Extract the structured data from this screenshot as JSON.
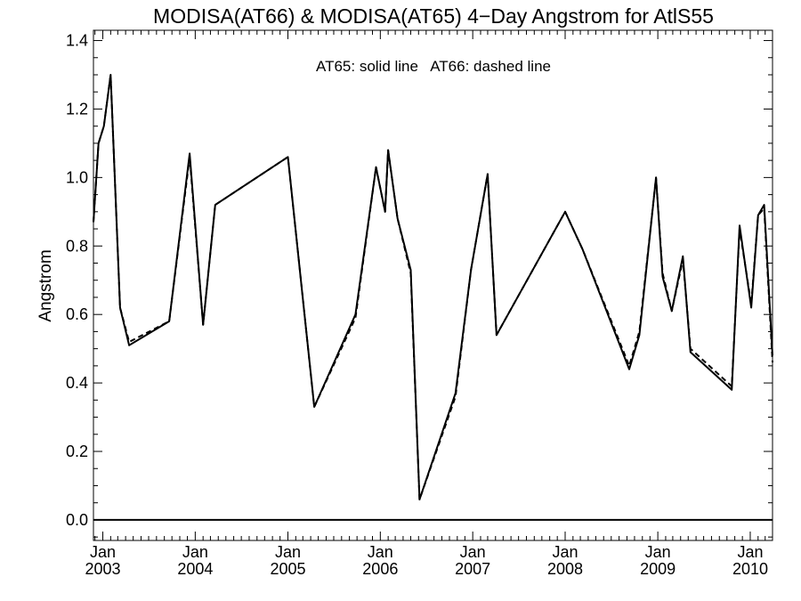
{
  "chart_data": {
    "type": "line",
    "title": "MODISA(AT66) & MODISA(AT65) 4−Day Angstrom for AtlS55",
    "ylabel": "Angstrom",
    "xlabel": "",
    "annotation": "AT65: solid line   AT66: dashed line",
    "xlim": [
      "2002-11-25",
      "2010-03-30"
    ],
    "ylim": [
      -0.06,
      1.43
    ],
    "y_ticks": [
      "0.0",
      "0.2",
      "0.4",
      "0.6",
      "0.8",
      "1.0",
      "1.2",
      "1.4"
    ],
    "x_ticks": [
      {
        "month": "Jan",
        "year": "2003",
        "date": "2003-01-01"
      },
      {
        "month": "Jan",
        "year": "2004",
        "date": "2004-01-01"
      },
      {
        "month": "Jan",
        "year": "2005",
        "date": "2005-01-01"
      },
      {
        "month": "Jan",
        "year": "2006",
        "date": "2006-01-01"
      },
      {
        "month": "Jan",
        "year": "2007",
        "date": "2007-01-01"
      },
      {
        "month": "Jan",
        "year": "2008",
        "date": "2008-01-01"
      },
      {
        "month": "Jan",
        "year": "2009",
        "date": "2009-01-01"
      },
      {
        "month": "Jan",
        "year": "2010",
        "date": "2010-01-01"
      }
    ],
    "zero_line": 0.0,
    "series": [
      {
        "name": "AT65",
        "style": "solid",
        "color": "#000000",
        "points": [
          [
            "2002-11-25",
            0.87
          ],
          [
            "2002-12-15",
            1.1
          ],
          [
            "2003-01-05",
            1.15
          ],
          [
            "2003-02-01",
            1.3
          ],
          [
            "2003-03-10",
            0.62
          ],
          [
            "2003-04-15",
            0.51
          ],
          [
            "2003-09-20",
            0.58
          ],
          [
            "2003-12-10",
            1.07
          ],
          [
            "2004-02-01",
            0.57
          ],
          [
            "2004-03-20",
            0.92
          ],
          [
            "2005-01-01",
            1.06
          ],
          [
            "2005-04-15",
            0.33
          ],
          [
            "2005-09-25",
            0.6
          ],
          [
            "2005-12-15",
            1.03
          ],
          [
            "2006-01-20",
            0.9
          ],
          [
            "2006-02-01",
            1.08
          ],
          [
            "2006-03-10",
            0.88
          ],
          [
            "2006-05-01",
            0.73
          ],
          [
            "2006-06-05",
            0.06
          ],
          [
            "2006-10-25",
            0.37
          ],
          [
            "2006-12-25",
            0.73
          ],
          [
            "2007-03-01",
            1.01
          ],
          [
            "2007-04-05",
            0.54
          ],
          [
            "2008-01-01",
            0.9
          ],
          [
            "2008-03-10",
            0.79
          ],
          [
            "2008-09-10",
            0.44
          ],
          [
            "2008-10-20",
            0.54
          ],
          [
            "2008-12-25",
            1.0
          ],
          [
            "2009-01-20",
            0.71
          ],
          [
            "2009-02-25",
            0.61
          ],
          [
            "2009-04-10",
            0.77
          ],
          [
            "2009-05-10",
            0.49
          ],
          [
            "2009-10-20",
            0.38
          ],
          [
            "2009-11-20",
            0.86
          ],
          [
            "2010-01-05",
            0.62
          ],
          [
            "2010-02-01",
            0.89
          ],
          [
            "2010-02-25",
            0.92
          ],
          [
            "2010-03-30",
            0.48
          ]
        ]
      },
      {
        "name": "AT66",
        "style": "dashed",
        "color": "#000000",
        "points": [
          [
            "2002-11-25",
            0.87
          ],
          [
            "2002-12-15",
            1.1
          ],
          [
            "2003-01-05",
            1.15
          ],
          [
            "2003-02-01",
            1.3
          ],
          [
            "2003-03-10",
            0.62
          ],
          [
            "2003-04-15",
            0.52
          ],
          [
            "2003-09-20",
            0.58
          ],
          [
            "2003-12-10",
            1.06
          ],
          [
            "2004-02-01",
            0.57
          ],
          [
            "2004-03-20",
            0.92
          ],
          [
            "2005-01-01",
            1.06
          ],
          [
            "2005-04-15",
            0.33
          ],
          [
            "2005-09-25",
            0.59
          ],
          [
            "2005-12-15",
            1.03
          ],
          [
            "2006-01-20",
            0.9
          ],
          [
            "2006-02-01",
            1.08
          ],
          [
            "2006-03-10",
            0.88
          ],
          [
            "2006-05-01",
            0.72
          ],
          [
            "2006-06-05",
            0.06
          ],
          [
            "2006-10-25",
            0.36
          ],
          [
            "2006-12-25",
            0.73
          ],
          [
            "2007-03-01",
            1.01
          ],
          [
            "2007-04-05",
            0.54
          ],
          [
            "2008-01-01",
            0.9
          ],
          [
            "2008-03-10",
            0.79
          ],
          [
            "2008-09-10",
            0.45
          ],
          [
            "2008-10-20",
            0.55
          ],
          [
            "2008-12-25",
            1.0
          ],
          [
            "2009-01-20",
            0.72
          ],
          [
            "2009-02-25",
            0.61
          ],
          [
            "2009-04-10",
            0.76
          ],
          [
            "2009-05-10",
            0.5
          ],
          [
            "2009-10-20",
            0.39
          ],
          [
            "2009-11-20",
            0.85
          ],
          [
            "2010-01-05",
            0.63
          ],
          [
            "2010-02-01",
            0.89
          ],
          [
            "2010-02-25",
            0.91
          ],
          [
            "2010-03-30",
            0.46
          ]
        ]
      }
    ]
  }
}
